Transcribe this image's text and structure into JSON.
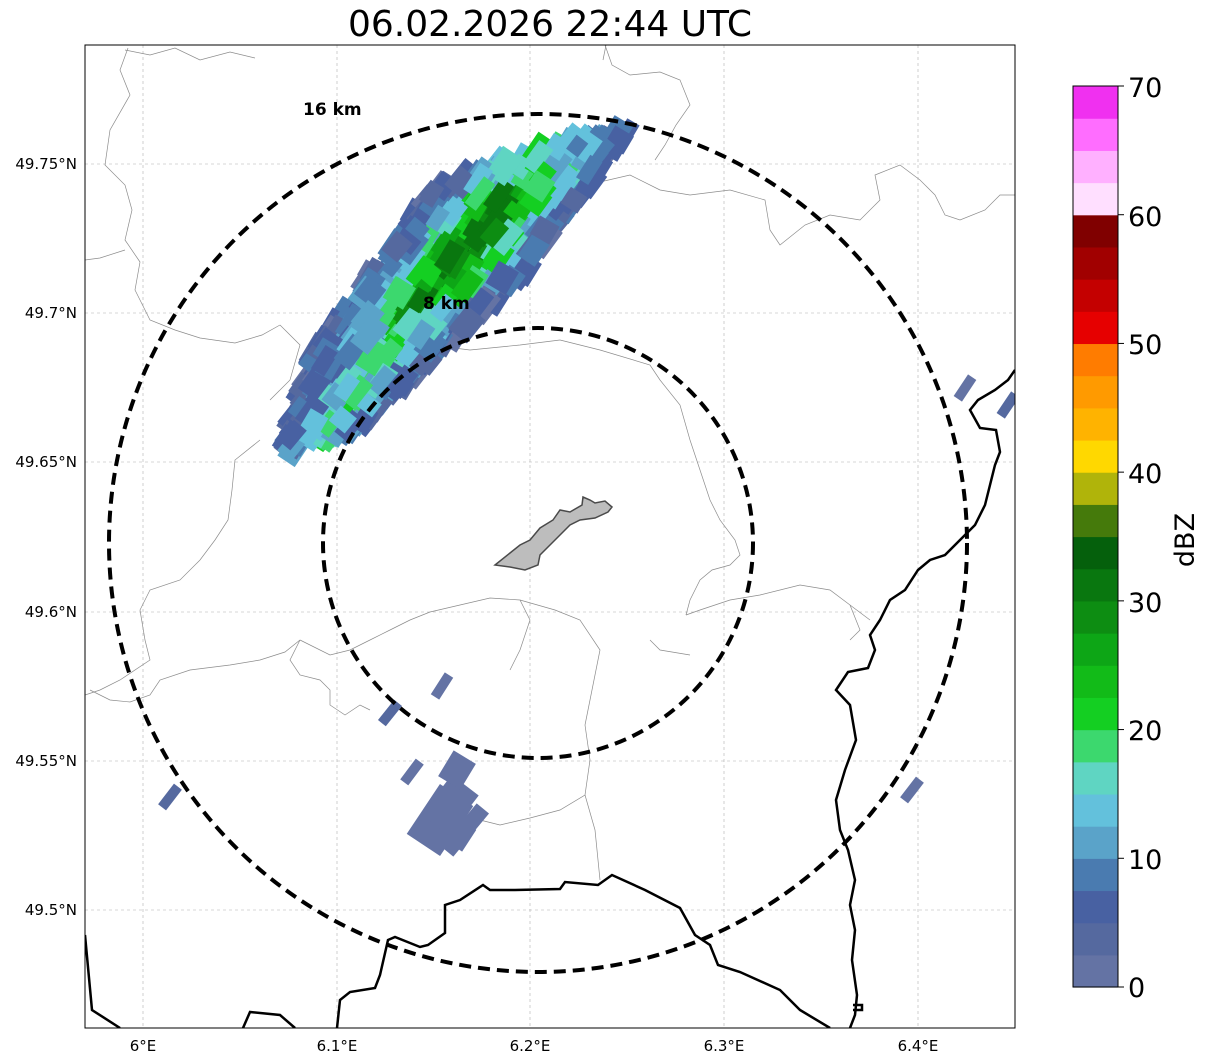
{
  "title": "06.02.2026 22:44 UTC",
  "map": {
    "lon_ticks": [
      "6°E",
      "6.1°E",
      "6.2°E",
      "6.3°E",
      "6.4°E"
    ],
    "lat_ticks": [
      "49.75°N",
      "49.7°N",
      "49.65°N",
      "49.6°N",
      "49.55°N",
      "49.5°N"
    ],
    "range_rings": [
      {
        "label": "16 km",
        "radius_km": 16
      },
      {
        "label": "8 km",
        "radius_km": 8
      }
    ],
    "gridlines": true
  },
  "colorbar": {
    "label": "dBZ",
    "ticks": [
      "0",
      "10",
      "20",
      "30",
      "40",
      "50",
      "60",
      "70"
    ],
    "min": 0,
    "max": 70,
    "step": 2.5,
    "colors": [
      "#6473a4",
      "#55699f",
      "#4861a2",
      "#4a7bb0",
      "#5aa3c9",
      "#63c1dc",
      "#5fd5c2",
      "#3cd86e",
      "#14cf22",
      "#12bb18",
      "#0da616",
      "#0d8d12",
      "#09770f",
      "#05600c",
      "#457a0b",
      "#b0b40a",
      "#ffd800",
      "#ffb300",
      "#ff9a00",
      "#ff7c00",
      "#e60000",
      "#c40000",
      "#a10000",
      "#800000",
      "#ffdfff",
      "#ffb0ff",
      "#ff6dff",
      "#f030f0"
    ]
  }
}
